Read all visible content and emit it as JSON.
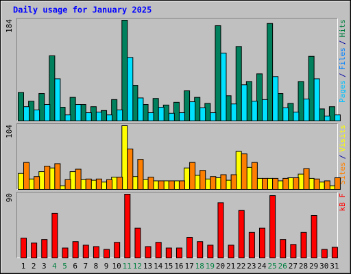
{
  "chart_data": [
    {
      "type": "bar",
      "title": "Daily usage for January 2025",
      "ylim": [
        0,
        184
      ],
      "yticks": [
        184
      ],
      "side_label": [
        {
          "text": "Pages",
          "color": "#00c0ff"
        },
        {
          "text": "/",
          "color": "#0000a0"
        },
        {
          "text": "Files",
          "color": "#0080ff"
        },
        {
          "text": "/",
          "color": "#0000a0"
        },
        {
          "text": "Hits",
          "color": "#008040"
        }
      ],
      "series": [
        {
          "color": "#00805c",
          "values": [
            52,
            36,
            50,
            119,
            25,
            43,
            30,
            26,
            19,
            39,
            184,
            65,
            30,
            41,
            29,
            34,
            55,
            43,
            32,
            174,
            46,
            136,
            72,
            86,
            178,
            50,
            32,
            72,
            118,
            22,
            26
          ]
        },
        {
          "color": "#00e0ff",
          "values": [
            26,
            20,
            30,
            77,
            11,
            30,
            15,
            16,
            11,
            20,
            116,
            42,
            15,
            25,
            14,
            15,
            35,
            24,
            15,
            124,
            31,
            66,
            36,
            39,
            81,
            24,
            16,
            40,
            77,
            9,
            11
          ]
        }
      ]
    },
    {
      "type": "bar",
      "ylim": [
        0,
        104
      ],
      "yticks": [
        104
      ],
      "side_label": [
        {
          "text": "Sites",
          "color": "#ff8000"
        },
        {
          "text": "/",
          "color": "#0000a0"
        },
        {
          "text": "Visits",
          "color": "#ffff00"
        }
      ],
      "series": [
        {
          "color": "#ffff00",
          "values": [
            26,
            17,
            29,
            35,
            6,
            29,
            16,
            15,
            12,
            20,
            104,
            21,
            16,
            14,
            14,
            14,
            35,
            23,
            17,
            19,
            15,
            62,
            36,
            18,
            18,
            14,
            19,
            25,
            18,
            12,
            6
          ]
        },
        {
          "color": "#ff8000",
          "values": [
            44,
            21,
            38,
            42,
            16,
            33,
            17,
            17,
            16,
            20,
            66,
            49,
            20,
            14,
            14,
            14,
            44,
            31,
            21,
            24,
            24,
            58,
            44,
            18,
            18,
            18,
            19,
            34,
            17,
            14,
            19
          ]
        }
      ]
    },
    {
      "type": "bar",
      "ylim": [
        0,
        90
      ],
      "yticks": [
        90
      ],
      "side_label": [
        {
          "text": "kB F",
          "color": "#ff0000"
        }
      ],
      "categories": [
        "1",
        "2",
        "3",
        "4",
        "5",
        "6",
        "7",
        "8",
        "9",
        "10",
        "11",
        "12",
        "13",
        "14",
        "15",
        "16",
        "17",
        "18",
        "19",
        "20",
        "21",
        "22",
        "23",
        "24",
        "25",
        "26",
        "27",
        "28",
        "29",
        "30",
        "31"
      ],
      "category_colors": [
        "#000000",
        "#000000",
        "#000000",
        "#008040",
        "#008040",
        "#000000",
        "#000000",
        "#000000",
        "#000000",
        "#000000",
        "#008040",
        "#008040",
        "#000000",
        "#000000",
        "#000000",
        "#000000",
        "#000000",
        "#008040",
        "#008040",
        "#000000",
        "#000000",
        "#000000",
        "#000000",
        "#000000",
        "#008040",
        "#008040",
        "#000000",
        "#000000",
        "#000000",
        "#000000",
        "#000000"
      ],
      "series": [
        {
          "color": "#ff0000",
          "values": [
            28,
            21,
            26,
            63,
            14,
            23,
            18,
            16,
            12,
            22,
            90,
            42,
            16,
            22,
            14,
            14,
            29,
            23,
            18,
            78,
            18,
            67,
            36,
            42,
            88,
            26,
            19,
            36,
            60,
            12,
            15
          ]
        }
      ]
    }
  ]
}
